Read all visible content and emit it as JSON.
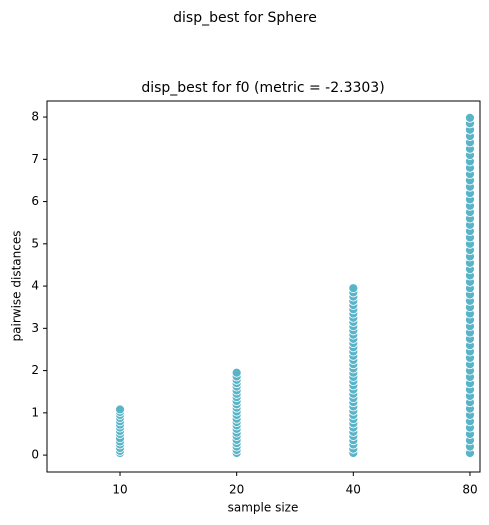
{
  "chart_data": {
    "type": "scatter",
    "suptitle": "disp_best for Sphere",
    "title": "disp_best for f0 (metric = -2.3303)",
    "xlabel": "sample size",
    "ylabel": "pairwise distances",
    "categories": [
      "10",
      "20",
      "40",
      "80"
    ],
    "color": "#5ab4c8",
    "values": [
      [
        0.05,
        0.1,
        0.17,
        0.25,
        0.32,
        0.4,
        0.5,
        0.57,
        0.65,
        0.72,
        0.8,
        0.88,
        0.95,
        1.02,
        1.08
      ],
      [
        0.05,
        0.12,
        0.2,
        0.28,
        0.36,
        0.45,
        0.53,
        0.62,
        0.7,
        0.78,
        0.86,
        0.95,
        1.03,
        1.12,
        1.2,
        1.28,
        1.37,
        1.45,
        1.53,
        1.62,
        1.7,
        1.78,
        1.86,
        1.95
      ],
      [
        0.05,
        0.15,
        0.25,
        0.35,
        0.45,
        0.55,
        0.65,
        0.75,
        0.85,
        0.95,
        1.05,
        1.15,
        1.25,
        1.35,
        1.45,
        1.55,
        1.65,
        1.75,
        1.85,
        1.95,
        2.05,
        2.15,
        2.25,
        2.35,
        2.45,
        2.55,
        2.65,
        2.75,
        2.85,
        2.95,
        3.05,
        3.15,
        3.25,
        3.35,
        3.45,
        3.55,
        3.65,
        3.75,
        3.85,
        3.95
      ],
      [
        0.05,
        0.2,
        0.35,
        0.5,
        0.65,
        0.8,
        0.95,
        1.1,
        1.25,
        1.4,
        1.55,
        1.7,
        1.85,
        2,
        2.15,
        2.3,
        2.45,
        2.6,
        2.75,
        2.9,
        3.05,
        3.2,
        3.35,
        3.5,
        3.65,
        3.8,
        3.95,
        4.1,
        4.25,
        4.4,
        4.55,
        4.7,
        4.85,
        5,
        5.15,
        5.3,
        5.45,
        5.6,
        5.75,
        5.9,
        6.05,
        6.2,
        6.35,
        6.5,
        6.65,
        6.8,
        6.95,
        7.1,
        7.25,
        7.4,
        7.55,
        7.7,
        7.85,
        7.98
      ]
    ],
    "ylim": [
      -0.4,
      8.38
    ],
    "yticks": [
      0,
      1,
      2,
      3,
      4,
      5,
      6,
      7,
      8
    ]
  }
}
